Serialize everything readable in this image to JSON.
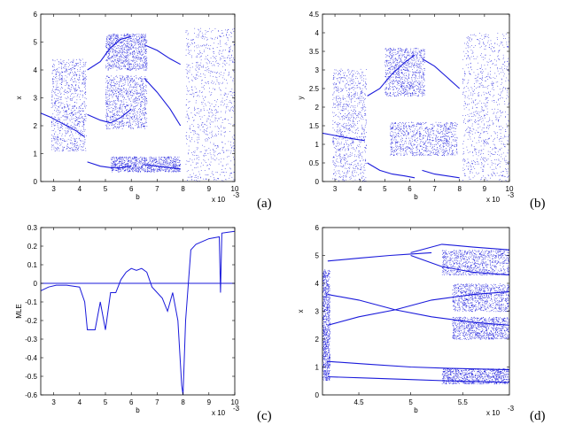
{
  "figure": {
    "panels": [
      {
        "id": "a",
        "label": "(a)",
        "xlabel": "b",
        "ylabel": "x",
        "exponent": "x 10",
        "exponent_power": "-3"
      },
      {
        "id": "b",
        "label": "(b)",
        "xlabel": "b",
        "ylabel": "y",
        "exponent": "x 10",
        "exponent_power": "-3"
      },
      {
        "id": "c",
        "label": "(c)",
        "xlabel": "b",
        "ylabel": "MLE",
        "exponent": "x 10",
        "exponent_power": "-3"
      },
      {
        "id": "d",
        "label": "(d)",
        "xlabel": "b",
        "ylabel": "x",
        "exponent": "x 10",
        "exponent_power": "-3"
      }
    ]
  },
  "colors": {
    "data": "#1a1adb",
    "axis": "#000000"
  },
  "chart_data": [
    {
      "panel": "a",
      "type": "scatter",
      "subtype": "bifurcation-diagram",
      "xlabel": "b",
      "ylabel": "x",
      "xlim": [
        2.5,
        10
      ],
      "ylim": [
        0,
        6
      ],
      "xticks": [
        3,
        4,
        5,
        6,
        7,
        8,
        9,
        10
      ],
      "yticks": [
        0,
        1,
        2,
        3,
        4,
        5,
        6
      ],
      "x_scale_factor": "x 10^-3",
      "branches": [
        {
          "x": [
            2.5,
            2.9,
            3.2,
            3.5,
            3.9,
            4.2
          ],
          "y": [
            2.45,
            2.3,
            2.15,
            2.0,
            1.8,
            1.6
          ]
        },
        {
          "x": [
            4.3,
            4.8,
            5.2,
            5.6,
            6.0
          ],
          "y": [
            2.4,
            2.2,
            2.1,
            2.3,
            2.6
          ]
        },
        {
          "x": [
            4.3,
            4.8,
            5.2,
            5.6,
            6.0
          ],
          "y": [
            4.0,
            4.3,
            4.8,
            5.1,
            5.2
          ]
        },
        {
          "x": [
            4.3,
            4.8,
            5.2,
            5.6,
            6.0
          ],
          "y": [
            0.7,
            0.55,
            0.5,
            0.5,
            0.55
          ]
        },
        {
          "x": [
            6.5,
            7.0,
            7.5,
            7.9
          ],
          "y": [
            4.9,
            4.7,
            4.4,
            4.2
          ]
        },
        {
          "x": [
            6.5,
            7.0,
            7.5,
            7.9
          ],
          "y": [
            3.7,
            3.2,
            2.6,
            2.0
          ]
        },
        {
          "x": [
            6.5,
            7.0,
            7.5,
            7.9
          ],
          "y": [
            0.6,
            0.55,
            0.5,
            0.45
          ]
        }
      ],
      "chaotic_bands": [
        {
          "x": [
            2.9,
            4.25
          ],
          "y": [
            1.1,
            4.4
          ]
        },
        {
          "x": [
            5.0,
            6.6
          ],
          "y": [
            4.0,
            5.3
          ]
        },
        {
          "x": [
            5.0,
            6.6
          ],
          "y": [
            1.9,
            3.8
          ]
        },
        {
          "x": [
            5.2,
            7.9
          ],
          "y": [
            0.35,
            0.9
          ]
        },
        {
          "x": [
            8.1,
            10
          ],
          "y": [
            0.0,
            5.5
          ]
        }
      ]
    },
    {
      "panel": "b",
      "type": "scatter",
      "subtype": "bifurcation-diagram",
      "xlabel": "b",
      "ylabel": "y",
      "xlim": [
        2.5,
        10
      ],
      "ylim": [
        0,
        4.5
      ],
      "xticks": [
        3,
        4,
        5,
        6,
        7,
        8,
        9,
        10
      ],
      "yticks": [
        0,
        0.5,
        1,
        1.5,
        2,
        2.5,
        3,
        3.5,
        4,
        4.5
      ],
      "x_scale_factor": "x 10^-3",
      "branches": [
        {
          "x": [
            2.5,
            2.9,
            3.3,
            3.7,
            4.2
          ],
          "y": [
            1.3,
            1.25,
            1.2,
            1.15,
            1.1
          ]
        },
        {
          "x": [
            4.3,
            4.8,
            5.3,
            5.8,
            6.2
          ],
          "y": [
            2.3,
            2.5,
            2.9,
            3.2,
            3.4
          ]
        },
        {
          "x": [
            4.3,
            4.8,
            5.3,
            5.8,
            6.2
          ],
          "y": [
            0.5,
            0.3,
            0.2,
            0.15,
            0.1
          ]
        },
        {
          "x": [
            6.5,
            7.0,
            7.5,
            8.0
          ],
          "y": [
            3.3,
            3.1,
            2.8,
            2.5
          ]
        },
        {
          "x": [
            6.5,
            7.0,
            7.5,
            8.0
          ],
          "y": [
            0.3,
            0.2,
            0.15,
            0.1
          ]
        }
      ],
      "chaotic_bands": [
        {
          "x": [
            2.9,
            4.25
          ],
          "y": [
            0.0,
            3.05
          ]
        },
        {
          "x": [
            5.0,
            6.6
          ],
          "y": [
            2.3,
            3.6
          ]
        },
        {
          "x": [
            5.2,
            7.9
          ],
          "y": [
            0.7,
            1.6
          ]
        },
        {
          "x": [
            8.1,
            10
          ],
          "y": [
            0.0,
            4.0
          ]
        }
      ]
    },
    {
      "panel": "c",
      "type": "line",
      "xlabel": "b",
      "ylabel": "MLE",
      "xlim": [
        2.5,
        10
      ],
      "ylim": [
        -0.6,
        0.3
      ],
      "xticks": [
        3,
        4,
        5,
        6,
        7,
        8,
        9,
        10
      ],
      "yticks": [
        -0.6,
        -0.5,
        -0.4,
        -0.3,
        -0.2,
        -0.1,
        0,
        0.1,
        0.2,
        0.3
      ],
      "x_scale_factor": "x 10^-3",
      "series": [
        {
          "x": [
            2.5,
            2.8,
            3.1,
            3.5,
            4.0,
            4.2,
            4.3,
            4.6,
            4.8,
            5.0,
            5.2,
            5.4,
            5.6,
            5.8,
            6.0,
            6.2,
            6.4,
            6.6,
            6.8,
            7.0,
            7.2,
            7.4,
            7.6,
            7.8,
            7.95,
            8.0,
            8.1,
            8.3,
            8.5,
            9.0,
            9.4,
            9.45,
            9.5,
            10.0
          ],
          "y": [
            -0.04,
            -0.02,
            -0.01,
            -0.01,
            -0.02,
            -0.1,
            -0.25,
            -0.25,
            -0.1,
            -0.25,
            -0.05,
            -0.05,
            0.02,
            0.06,
            0.08,
            0.07,
            0.08,
            0.06,
            -0.02,
            -0.05,
            -0.08,
            -0.15,
            -0.05,
            -0.2,
            -0.55,
            -0.6,
            -0.2,
            0.18,
            0.21,
            0.24,
            0.25,
            -0.05,
            0.27,
            0.28
          ]
        }
      ],
      "reference_line": 0
    },
    {
      "panel": "d",
      "type": "scatter",
      "subtype": "bifurcation-diagram-zoom",
      "xlabel": "b",
      "ylabel": "x",
      "xlim": [
        4.15,
        5.95
      ],
      "ylim": [
        0,
        6
      ],
      "xticks": [
        4.5,
        5,
        5.5
      ],
      "yticks": [
        0,
        1,
        2,
        3,
        4,
        5,
        6
      ],
      "x_scale_factor": "x 10^-3",
      "branches": [
        {
          "x": [
            4.2,
            4.5,
            4.8,
            5.0,
            5.2
          ],
          "y": [
            4.8,
            4.9,
            5.0,
            5.05,
            5.1
          ]
        },
        {
          "x": [
            5.0,
            5.3,
            5.6,
            5.95
          ],
          "y": [
            5.1,
            5.4,
            5.3,
            5.2
          ]
        },
        {
          "x": [
            5.0,
            5.3,
            5.6,
            5.95
          ],
          "y": [
            5.0,
            4.6,
            4.4,
            4.3
          ]
        },
        {
          "x": [
            4.2,
            4.5,
            4.85,
            5.2,
            5.6,
            5.95
          ],
          "y": [
            2.5,
            2.8,
            3.05,
            3.4,
            3.6,
            3.7
          ]
        },
        {
          "x": [
            4.2,
            4.5,
            4.85,
            5.2,
            5.6,
            5.95
          ],
          "y": [
            3.6,
            3.4,
            3.05,
            2.8,
            2.6,
            2.5
          ]
        },
        {
          "x": [
            4.2,
            4.6,
            5.0,
            5.4,
            5.95
          ],
          "y": [
            1.2,
            1.1,
            1.0,
            0.95,
            0.9
          ]
        },
        {
          "x": [
            4.2,
            4.6,
            5.0,
            5.4,
            5.95
          ],
          "y": [
            0.65,
            0.6,
            0.55,
            0.5,
            0.45
          ]
        }
      ],
      "chaotic_bands": [
        {
          "x": [
            4.15,
            4.22
          ],
          "y": [
            0.5,
            4.5
          ]
        },
        {
          "x": [
            5.3,
            5.95
          ],
          "y": [
            4.3,
            5.2
          ]
        },
        {
          "x": [
            5.4,
            5.95
          ],
          "y": [
            3.0,
            4.0
          ]
        },
        {
          "x": [
            5.4,
            5.95
          ],
          "y": [
            2.0,
            2.8
          ]
        },
        {
          "x": [
            5.3,
            5.95
          ],
          "y": [
            0.4,
            0.95
          ]
        }
      ]
    }
  ]
}
